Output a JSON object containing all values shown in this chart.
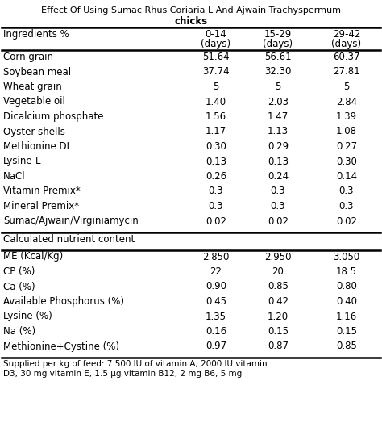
{
  "title_line1": "Effect Of Using Sumac Rhus Coriaria L And Ajwain Trachyspermum",
  "title_line2": "chicks",
  "section1_rows": [
    [
      "Corn grain",
      "51.64",
      "56.61",
      "60.37"
    ],
    [
      "Soybean meal",
      "37.74",
      "32.30",
      "27.81"
    ],
    [
      "Wheat grain",
      "5",
      "5",
      "5"
    ],
    [
      "Vegetable oil",
      "1.40",
      "2.03",
      "2.84"
    ],
    [
      "Dicalcium phosphate",
      "1.56",
      "1.47",
      "1.39"
    ],
    [
      "Oyster shells",
      "1.17",
      "1.13",
      "1.08"
    ],
    [
      "Methionine DL",
      "0.30",
      "0.29",
      "0.27"
    ],
    [
      "Lysine-L",
      "0.13",
      "0.13",
      "0.30"
    ],
    [
      "NaCl",
      "0.26",
      "0.24",
      "0.14"
    ],
    [
      "Vitamin Premix*",
      "0.3",
      "0.3",
      "0.3"
    ],
    [
      "Mineral Premix*",
      "0.3",
      "0.3",
      "0.3"
    ],
    [
      "Sumac/Ajwain/Virginiamycin",
      "0.02",
      "0.02",
      "0.02"
    ]
  ],
  "section2_header": "Calculated nutrient content",
  "section2_rows": [
    [
      "ME (Kcal/Kg)",
      "2.850",
      "2.950",
      "3.050"
    ],
    [
      "CP (%)",
      "22",
      "20",
      "18.5"
    ],
    [
      "Ca (%)",
      "0.90",
      "0.85",
      "0.80"
    ],
    [
      "Available Phosphorus (%)",
      "0.45",
      "0.42",
      "0.40"
    ],
    [
      "Lysine (%)",
      "1.35",
      "1.20",
      "1.16"
    ],
    [
      "Na (%)",
      "0.16",
      "0.15",
      "0.15"
    ],
    [
      "Methionine+Cystine (%)",
      "0.97",
      "0.87",
      "0.85"
    ]
  ],
  "footnote": "Supplied per kg of feed: 7.500 IU of vitamin A, 2000 IU vitamin\nD3, 30 mg vitamin E, 1.5 μg vitamin B12, 2 mg B6, 5 mg",
  "bg_color": "#ffffff",
  "text_color": "#000000",
  "font_size": 8.5
}
